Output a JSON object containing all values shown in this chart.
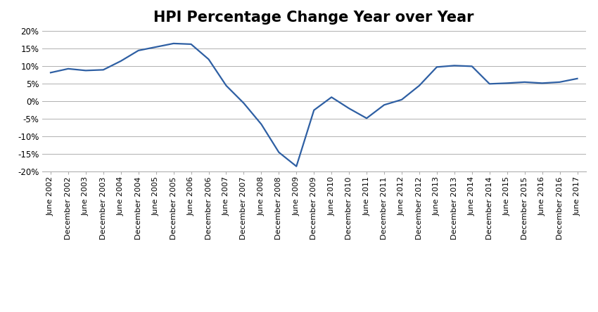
{
  "title": "HPI Percentage Change Year over Year",
  "title_fontsize": 15,
  "title_fontweight": "bold",
  "line_color": "#2e5fa3",
  "line_width": 1.6,
  "background_color": "#ffffff",
  "grid_color": "#b0b0b0",
  "ylim": [
    -20,
    20
  ],
  "yticks": [
    -20,
    -15,
    -10,
    -5,
    0,
    5,
    10,
    15,
    20
  ],
  "ytick_labels": [
    "-20%",
    "-15%",
    "-10%",
    "-5%",
    "0%",
    "5%",
    "10%",
    "15%",
    "20%"
  ],
  "labels": [
    "June 2002",
    "December 2002",
    "June 2003",
    "December 2003",
    "June 2004",
    "December 2004",
    "June 2005",
    "December 2005",
    "June 2006",
    "December 2006",
    "June 2007",
    "December 2007",
    "June 2008",
    "December 2008",
    "June 2009",
    "December 2009",
    "June 2010",
    "December 2010",
    "June 2011",
    "December 2011",
    "June 2012",
    "December 2012",
    "June 2013",
    "December 2013",
    "June 2014",
    "December 2014",
    "June 2015",
    "December 2015",
    "June 2016",
    "December 2016",
    "June 2017"
  ],
  "values": [
    8.2,
    9.3,
    8.8,
    9.0,
    11.5,
    14.5,
    15.5,
    16.5,
    16.3,
    12.0,
    4.5,
    -0.5,
    -6.5,
    -14.5,
    -18.5,
    -2.5,
    1.2,
    -2.0,
    -4.8,
    -1.0,
    0.5,
    4.5,
    9.8,
    10.2,
    10.0,
    5.0,
    5.2,
    5.5,
    5.2,
    5.5,
    6.5
  ],
  "tick_label_fontsize": 8.0,
  "ytick_label_fontsize": 8.5
}
